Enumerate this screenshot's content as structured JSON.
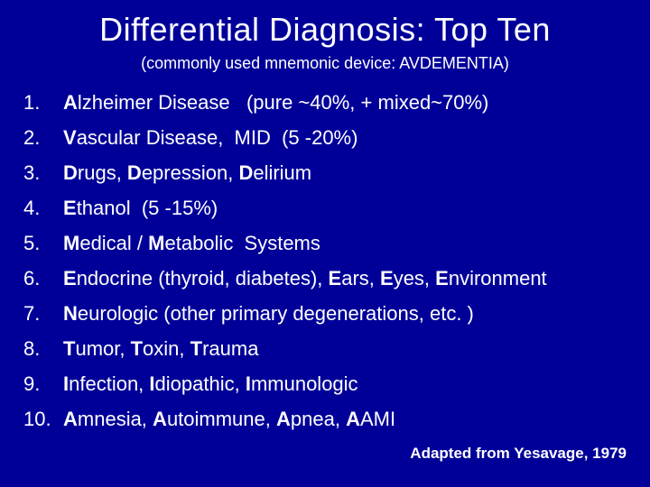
{
  "title": "Differential Diagnosis:  Top Ten",
  "subtitle": "(commonly used mnemonic device: AVDEMENTIA)",
  "items": [
    {
      "num": "1.",
      "html": "<span class='bold-letter'>A</span>lzheimer Disease&nbsp;&nbsp;&nbsp;(pure ~40%, + mixed~70%)"
    },
    {
      "num": "2.",
      "html": "<span class='bold-letter'>V</span>ascular Disease,&nbsp;&nbsp;MID&nbsp;&nbsp;(5 -20%)"
    },
    {
      "num": "3.",
      "html": "<span class='bold-letter'>D</span>rugs, <span class='bold-letter'>D</span>epression, <span class='bold-letter'>D</span>elirium"
    },
    {
      "num": "4.",
      "html": "<span class='bold-letter'>E</span>thanol&nbsp;&nbsp;(5 -15%)"
    },
    {
      "num": "5.",
      "html": "<span class='bold-letter'>M</span>edical / <span class='bold-letter'>M</span>etabolic&nbsp;&nbsp;Systems"
    },
    {
      "num": "6.",
      "html": "<span class='bold-letter'>E</span>ndocrine (thyroid, diabetes), <span class='bold-letter'>E</span>ars, <span class='bold-letter'>E</span>yes, <span class='bold-letter'>E</span>nvironment"
    },
    {
      "num": "7.",
      "html": "<span class='bold-letter'>N</span>eurologic (other primary degenerations, etc. )"
    },
    {
      "num": "8.",
      "html": "<span class='bold-letter'>T</span>umor, <span class='bold-letter'>T</span>oxin, <span class='bold-letter'>T</span>rauma"
    },
    {
      "num": "9.",
      "html": "<span class='bold-letter'>I</span>nfection, <span class='bold-letter'>I</span>diopathic, <span class='bold-letter'>I</span>mmunologic"
    },
    {
      "num": "10.",
      "html": "<span class='bold-letter'>A</span>mnesia, <span class='bold-letter'>A</span>utoimmune, <span class='bold-letter'>A</span>pnea, <span class='bold-letter'>A</span>AMI"
    }
  ],
  "attribution": "Adapted from Yesavage, 1979",
  "colors": {
    "background": "#000099",
    "text": "#ffffff"
  },
  "typography": {
    "title_fontsize": 36,
    "subtitle_fontsize": 18,
    "item_fontsize": 22,
    "attribution_fontsize": 17
  }
}
